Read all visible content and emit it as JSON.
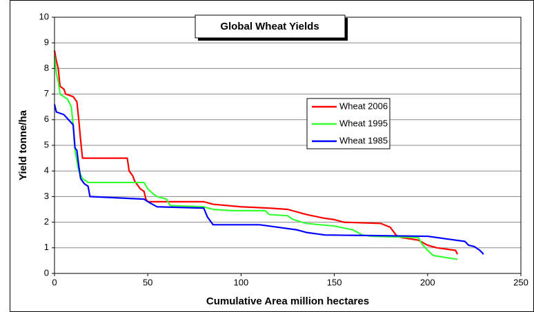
{
  "chart_data": {
    "type": "line",
    "title": "Global Wheat Yields",
    "x_label": "Cumulative Area million hectares",
    "y_label": "Yield tonne/ha",
    "xlim": [
      0,
      250
    ],
    "xticks": [
      0,
      50,
      100,
      150,
      200,
      250
    ],
    "ylim": [
      0,
      10
    ],
    "yticks": [
      0,
      1,
      2,
      3,
      4,
      5,
      6,
      7,
      8,
      9,
      10
    ],
    "grid": true,
    "legend": "right",
    "series": [
      {
        "name": "Wheat 2006",
        "color": "#ff0000",
        "x": [
          0,
          1,
          2,
          3,
          5,
          6,
          10,
          12,
          13,
          14,
          15,
          39,
          40,
          42,
          43,
          46,
          48,
          49,
          50,
          80,
          85,
          100,
          115,
          125,
          130,
          135,
          145,
          150,
          155,
          175,
          180,
          183,
          186,
          195,
          200,
          205,
          215,
          216
        ],
        "values": [
          8.7,
          8.3,
          8.0,
          7.3,
          7.2,
          7.0,
          6.9,
          6.7,
          6.0,
          5.2,
          4.5,
          4.5,
          4.0,
          3.8,
          3.6,
          3.3,
          3.2,
          2.9,
          2.8,
          2.8,
          2.7,
          2.6,
          2.55,
          2.5,
          2.4,
          2.3,
          2.15,
          2.1,
          2.0,
          1.95,
          1.8,
          1.5,
          1.4,
          1.3,
          1.1,
          1.0,
          0.9,
          0.75
        ]
      },
      {
        "name": "Wheat 1995",
        "color": "#33ff33",
        "x": [
          0,
          1,
          2,
          3,
          7,
          9,
          10,
          11,
          13,
          15,
          18,
          48,
          50,
          53,
          55,
          60,
          62,
          80,
          85,
          95,
          113,
          115,
          125,
          128,
          135,
          150,
          160,
          165,
          170,
          195,
          197,
          200,
          203,
          216
        ],
        "values": [
          8.5,
          7.8,
          7.5,
          7.0,
          6.8,
          6.5,
          5.8,
          4.8,
          4.0,
          3.7,
          3.55,
          3.55,
          3.3,
          3.1,
          3.0,
          2.9,
          2.65,
          2.6,
          2.5,
          2.45,
          2.45,
          2.3,
          2.25,
          2.1,
          1.95,
          1.85,
          1.7,
          1.5,
          1.45,
          1.4,
          1.15,
          0.9,
          0.7,
          0.55
        ]
      },
      {
        "name": "Wheat 1985",
        "color": "#0000ff",
        "x": [
          0,
          1,
          5,
          10,
          11,
          12,
          13,
          14,
          16,
          18,
          19,
          48,
          50,
          55,
          80,
          82,
          85,
          110,
          130,
          135,
          145,
          200,
          210,
          220,
          222,
          225,
          228,
          230
        ],
        "values": [
          6.6,
          6.3,
          6.2,
          5.8,
          4.9,
          4.8,
          4.2,
          3.7,
          3.5,
          3.4,
          3.0,
          2.9,
          2.8,
          2.6,
          2.55,
          2.2,
          1.9,
          1.9,
          1.7,
          1.6,
          1.5,
          1.45,
          1.35,
          1.25,
          1.1,
          1.05,
          0.9,
          0.75
        ]
      }
    ]
  }
}
